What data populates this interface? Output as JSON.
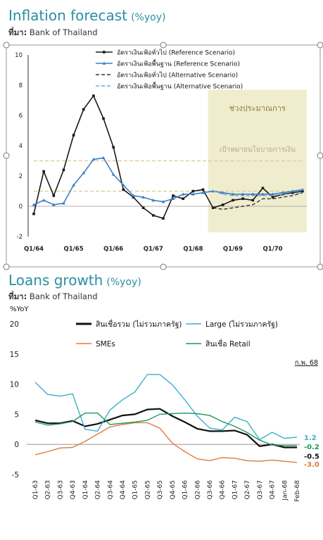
{
  "chart_data": [
    {
      "type": "line",
      "title": "Inflation forecast",
      "unit": "(%yoy)",
      "source_label": "ที่มา:",
      "source": "Bank of Thailand",
      "ylim": [
        -2,
        10
      ],
      "y_ticks": [
        "-2",
        "0",
        "2",
        "4",
        "6",
        "8",
        "10"
      ],
      "x_ticks": [
        "Q1/64",
        "Q1/65",
        "Q1/66",
        "Q1/67",
        "Q1/68",
        "Q1/69",
        "Q1/70"
      ],
      "band_label": "ช่วงประมาณการ",
      "target_label": "เป้าหมายนโยบายการเงิน",
      "target_range": [
        1,
        3
      ],
      "band_color": "#f0edcf",
      "series": [
        {
          "name": "อัตราเงินเฟ้อทั่วไป (Reference Scenario)",
          "color": "#1a1a1a",
          "style": "solid-marker",
          "values": [
            -0.5,
            2.3,
            0.7,
            2.4,
            4.7,
            6.4,
            7.3,
            5.8,
            3.9,
            1.1,
            0.6,
            -0.1,
            -0.6,
            -0.8,
            0.7,
            0.5,
            1.0,
            1.1,
            -0.1,
            0.1,
            0.4,
            0.5,
            0.4,
            1.2,
            0.6,
            0.8,
            0.9,
            1.0
          ]
        },
        {
          "name": "อัตราเงินเฟ้อพื้นฐาน (Reference Scenario)",
          "color": "#3a7fc4",
          "style": "solid-marker",
          "values": [
            0.1,
            0.4,
            0.1,
            0.2,
            1.4,
            2.2,
            3.1,
            3.2,
            2.1,
            1.4,
            0.7,
            0.6,
            0.4,
            0.3,
            0.5,
            0.8,
            0.8,
            0.9,
            1.0,
            0.9,
            0.8,
            0.8,
            0.8,
            0.8,
            0.8,
            0.9,
            1.0,
            1.1
          ]
        },
        {
          "name": "อัตราเงินเฟ้อทั่วไป (Alternative Scenario)",
          "color": "#333333",
          "style": "dashed",
          "values": [
            null,
            null,
            null,
            null,
            null,
            null,
            null,
            null,
            null,
            null,
            null,
            null,
            null,
            null,
            null,
            null,
            null,
            null,
            -0.1,
            -0.2,
            -0.1,
            0.0,
            0.1,
            0.5,
            0.5,
            0.6,
            0.7,
            0.9
          ]
        },
        {
          "name": "อัตราเงินเฟ้อพื้นฐาน (Alternative Scenario)",
          "color": "#6aa8e0",
          "style": "dashed",
          "values": [
            null,
            null,
            null,
            null,
            null,
            null,
            null,
            null,
            null,
            null,
            null,
            null,
            null,
            null,
            null,
            null,
            null,
            null,
            1.0,
            0.8,
            0.7,
            0.7,
            0.7,
            0.7,
            0.7,
            0.8,
            0.8,
            0.9
          ]
        }
      ]
    },
    {
      "type": "line",
      "title": "Loans growth",
      "unit": "(%yoy)",
      "source_label": "ที่มา:",
      "source": "Bank of Thailand",
      "ylabel": "%YoY",
      "ylim": [
        -5,
        20
      ],
      "y_ticks": [
        "-5",
        "0",
        "5",
        "10",
        "15",
        "20"
      ],
      "corner_note": "ก.พ. 68",
      "categories": [
        "Q1-63",
        "Q2-63",
        "Q3-63",
        "Q4-63",
        "Q1-64",
        "Q2-64",
        "Q3-64",
        "Q4-64",
        "Q1-65",
        "Q2-65",
        "Q3-65",
        "Q4-65",
        "Q1-66",
        "Q2-66",
        "Q3-66",
        "Q4-66",
        "Q1-67",
        "Q2-67",
        "Q3-67",
        "Q4-67",
        "Jan-68",
        "Feb-68"
      ],
      "end_labels": [
        {
          "text": "1.2",
          "color": "#3bb0c9",
          "value": 1.2
        },
        {
          "text": "-0.2",
          "color": "#1e9a5c",
          "value": -0.2
        },
        {
          "text": "-0.5",
          "color": "#111111",
          "value": -0.5
        },
        {
          "text": "-3.0",
          "color": "#e07b3c",
          "value": -3.0
        }
      ],
      "series": [
        {
          "name": "สินเชื่อรวม (ไม่รวมภาครัฐ)",
          "color": "#111111",
          "width": 2.2,
          "values": [
            4.0,
            3.5,
            3.5,
            3.9,
            3.0,
            3.4,
            4.1,
            4.8,
            5.0,
            5.8,
            5.9,
            4.7,
            3.7,
            2.6,
            2.2,
            2.2,
            2.3,
            1.6,
            -0.3,
            0.0,
            -0.5,
            -0.5
          ]
        },
        {
          "name": "Large (ไม่รวมภาครัฐ)",
          "color": "#3bb0c9",
          "width": 1.4,
          "values": [
            10.3,
            8.3,
            8.0,
            8.4,
            2.5,
            2.2,
            5.7,
            7.4,
            8.7,
            11.6,
            11.6,
            9.9,
            7.4,
            4.7,
            2.7,
            2.4,
            4.5,
            3.8,
            0.8,
            2.0,
            1.0,
            1.2
          ]
        },
        {
          "name": "SMEs",
          "color": "#e07b3c",
          "width": 1.4,
          "values": [
            -1.7,
            -1.2,
            -0.6,
            -0.5,
            0.5,
            1.7,
            2.9,
            3.3,
            3.6,
            3.6,
            2.7,
            0.2,
            -1.2,
            -2.4,
            -2.7,
            -2.2,
            -2.3,
            -2.7,
            -2.8,
            -2.6,
            -2.8,
            -3.0
          ]
        },
        {
          "name": "สินเชื่อ Retail",
          "color": "#1e9a5c",
          "width": 1.4,
          "values": [
            3.7,
            3.2,
            3.4,
            3.8,
            5.2,
            5.2,
            3.3,
            3.5,
            3.7,
            4.0,
            5.0,
            5.1,
            5.2,
            5.1,
            4.8,
            3.8,
            3.0,
            2.0,
            0.7,
            -0.1,
            -0.2,
            -0.2
          ]
        }
      ]
    }
  ]
}
